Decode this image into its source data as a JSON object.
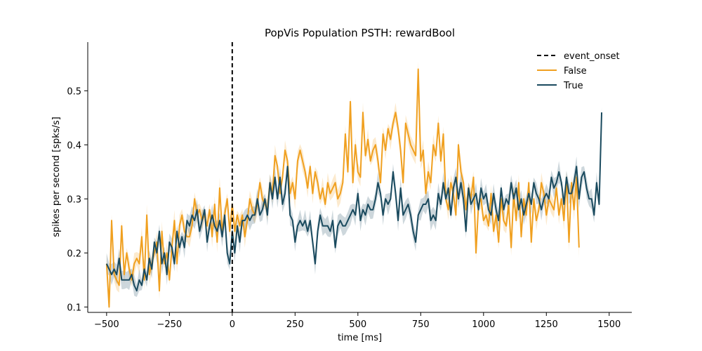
{
  "chart_data": {
    "type": "line",
    "title": "PopVis Population PSTH: rewardBool",
    "xlabel": "time [ms]",
    "ylabel": "spikes per second [spks/s]",
    "xlim": [
      -575,
      1590
    ],
    "ylim": [
      0.09,
      0.59
    ],
    "x_ticks": [
      -500,
      -250,
      0,
      250,
      500,
      750,
      1000,
      1250,
      1500
    ],
    "x_tick_labels": [
      "−500",
      "−250",
      "0",
      "250",
      "500",
      "750",
      "1000",
      "1250",
      "1500"
    ],
    "y_ticks": [
      0.1,
      0.2,
      0.3,
      0.4,
      0.5
    ],
    "y_tick_labels": [
      "0.1",
      "0.2",
      "0.3",
      "0.4",
      "0.5"
    ],
    "grid": false,
    "legend_position": "top-right",
    "event_onset": {
      "name": "event_onset",
      "x": 0,
      "color": "#000000",
      "style": "dashed"
    },
    "x_start": -500,
    "x_step": 10,
    "series": [
      {
        "name": "False",
        "color": "#f0a020",
        "values": [
          0.18,
          0.1,
          0.26,
          0.16,
          0.15,
          0.14,
          0.25,
          0.16,
          0.2,
          0.17,
          0.15,
          0.18,
          0.19,
          0.18,
          0.23,
          0.15,
          0.27,
          0.16,
          0.18,
          0.2,
          0.22,
          0.13,
          0.24,
          0.18,
          0.2,
          0.15,
          0.21,
          0.26,
          0.18,
          0.25,
          0.27,
          0.24,
          0.23,
          0.23,
          0.25,
          0.3,
          0.27,
          0.28,
          0.26,
          0.27,
          0.25,
          0.28,
          0.23,
          0.29,
          0.22,
          0.32,
          0.24,
          0.27,
          0.3,
          0.24,
          0.29,
          0.24,
          0.27,
          0.25,
          0.27,
          0.23,
          0.26,
          0.3,
          0.28,
          0.27,
          0.29,
          0.33,
          0.3,
          0.29,
          0.28,
          0.33,
          0.31,
          0.38,
          0.36,
          0.31,
          0.34,
          0.39,
          0.37,
          0.31,
          0.33,
          0.3,
          0.37,
          0.39,
          0.37,
          0.35,
          0.32,
          0.36,
          0.31,
          0.35,
          0.33,
          0.3,
          0.32,
          0.29,
          0.33,
          0.31,
          0.32,
          0.33,
          0.3,
          0.31,
          0.33,
          0.42,
          0.35,
          0.48,
          0.33,
          0.4,
          0.35,
          0.34,
          0.46,
          0.38,
          0.41,
          0.37,
          0.39,
          0.4,
          0.37,
          0.33,
          0.42,
          0.39,
          0.43,
          0.41,
          0.44,
          0.46,
          0.43,
          0.39,
          0.33,
          0.44,
          0.42,
          0.4,
          0.39,
          0.38,
          0.54,
          0.37,
          0.39,
          0.31,
          0.35,
          0.33,
          0.4,
          0.38,
          0.44,
          0.37,
          0.42,
          0.3,
          0.28,
          0.33,
          0.31,
          0.27,
          0.4,
          0.35,
          0.33,
          0.28,
          0.32,
          0.3,
          0.34,
          0.2,
          0.29,
          0.3,
          0.26,
          0.27,
          0.25,
          0.31,
          0.24,
          0.27,
          0.22,
          0.3,
          0.26,
          0.25,
          0.29,
          0.21,
          0.31,
          0.26,
          0.33,
          0.23,
          0.3,
          0.27,
          0.33,
          0.22,
          0.3,
          0.26,
          0.28,
          0.33,
          0.31,
          0.27,
          0.3,
          0.29,
          0.28,
          0.32,
          0.27,
          0.3,
          0.26,
          0.34,
          0.22,
          0.33,
          0.28,
          0.34,
          0.21
        ]
      },
      {
        "name": "True",
        "color": "#1a4a5e",
        "values": [
          0.18,
          0.17,
          0.16,
          0.17,
          0.16,
          0.19,
          0.15,
          0.15,
          0.15,
          0.15,
          0.16,
          0.14,
          0.13,
          0.15,
          0.14,
          0.17,
          0.15,
          0.19,
          0.17,
          0.22,
          0.2,
          0.24,
          0.18,
          0.2,
          0.16,
          0.22,
          0.21,
          0.18,
          0.24,
          0.21,
          0.23,
          0.21,
          0.26,
          0.25,
          0.27,
          0.26,
          0.28,
          0.24,
          0.26,
          0.28,
          0.22,
          0.25,
          0.27,
          0.25,
          0.24,
          0.26,
          0.23,
          0.27,
          0.2,
          0.18,
          0.24,
          0.2,
          0.25,
          0.22,
          0.26,
          0.26,
          0.27,
          0.26,
          0.27,
          0.27,
          0.3,
          0.27,
          0.28,
          0.3,
          0.27,
          0.33,
          0.3,
          0.34,
          0.3,
          0.34,
          0.29,
          0.31,
          0.36,
          0.27,
          0.26,
          0.22,
          0.25,
          0.26,
          0.25,
          0.26,
          0.24,
          0.26,
          0.22,
          0.18,
          0.24,
          0.27,
          0.25,
          0.25,
          0.25,
          0.24,
          0.26,
          0.21,
          0.25,
          0.26,
          0.25,
          0.25,
          0.26,
          0.27,
          0.28,
          0.27,
          0.31,
          0.26,
          0.28,
          0.27,
          0.29,
          0.28,
          0.28,
          0.3,
          0.33,
          0.31,
          0.27,
          0.3,
          0.29,
          0.3,
          0.35,
          0.31,
          0.26,
          0.32,
          0.27,
          0.28,
          0.29,
          0.27,
          0.24,
          0.22,
          0.27,
          0.28,
          0.29,
          0.29,
          0.3,
          0.26,
          0.27,
          0.26,
          0.31,
          0.29,
          0.33,
          0.3,
          0.32,
          0.27,
          0.32,
          0.34,
          0.3,
          0.33,
          0.3,
          0.24,
          0.32,
          0.29,
          0.3,
          0.31,
          0.28,
          0.32,
          0.3,
          0.31,
          0.28,
          0.27,
          0.31,
          0.28,
          0.26,
          0.32,
          0.28,
          0.3,
          0.29,
          0.33,
          0.3,
          0.32,
          0.28,
          0.3,
          0.27,
          0.29,
          0.31,
          0.29,
          0.33,
          0.31,
          0.3,
          0.28,
          0.3,
          0.31,
          0.3,
          0.34,
          0.32,
          0.33,
          0.35,
          0.33,
          0.29,
          0.34,
          0.31,
          0.31,
          0.33,
          0.36,
          0.3,
          0.34,
          0.35,
          0.32,
          0.3,
          0.3,
          0.27,
          0.33,
          0.29,
          0.46
        ]
      }
    ]
  }
}
